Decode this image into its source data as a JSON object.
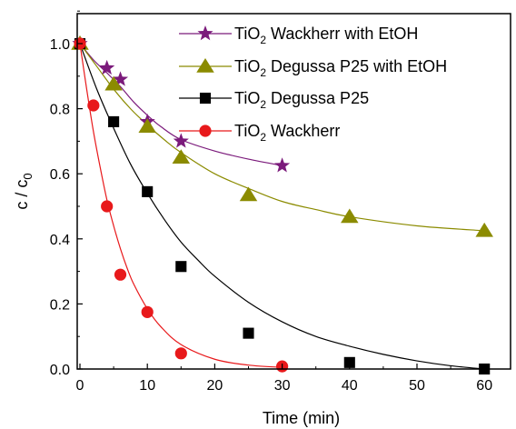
{
  "chart_data": {
    "type": "scatter",
    "xlabel": "Time (min)",
    "ylabel": {
      "main": "c / c",
      "sub": "0"
    },
    "xlim": [
      0,
      65
    ],
    "ylim": [
      0,
      1.1
    ],
    "xticks": [
      0,
      10,
      20,
      30,
      40,
      50,
      60
    ],
    "yticks": [
      0.0,
      0.2,
      0.4,
      0.6,
      0.8,
      1.0
    ],
    "xtick_labels": [
      "0",
      "10",
      "20",
      "30",
      "40",
      "50",
      "60"
    ],
    "ytick_labels": [
      "0.0",
      "0.2",
      "0.4",
      "0.6",
      "0.8",
      "1.0"
    ],
    "grid": false,
    "legend_position": "top-right",
    "series": [
      {
        "name": {
          "pre": "TiO",
          "sub": "2",
          "post": " Wackherr  with EtOH"
        },
        "color": "#7b1a7b",
        "marker": "star",
        "x": [
          0,
          4,
          6,
          10,
          15,
          30
        ],
        "y": [
          1.0,
          0.925,
          0.89,
          0.76,
          0.7,
          0.625
        ],
        "curve": [
          [
            0,
            1.0
          ],
          [
            2,
            0.95
          ],
          [
            4,
            0.91
          ],
          [
            6,
            0.868
          ],
          [
            8,
            0.82
          ],
          [
            10,
            0.78
          ],
          [
            12,
            0.745
          ],
          [
            15,
            0.705
          ],
          [
            20,
            0.67
          ],
          [
            25,
            0.645
          ],
          [
            30,
            0.625
          ]
        ]
      },
      {
        "name": {
          "pre": "TiO",
          "sub": "2",
          "post": " Degussa P25  with EtOH"
        },
        "color": "#8b8b00",
        "marker": "triangle",
        "x": [
          0,
          5,
          10,
          15,
          25,
          40,
          60
        ],
        "y": [
          1.0,
          0.875,
          0.745,
          0.65,
          0.535,
          0.468,
          0.425
        ],
        "curve": [
          [
            0,
            1.0
          ],
          [
            2.5,
            0.93
          ],
          [
            5,
            0.86
          ],
          [
            7.5,
            0.8
          ],
          [
            10,
            0.75
          ],
          [
            12.5,
            0.705
          ],
          [
            15,
            0.665
          ],
          [
            20,
            0.6
          ],
          [
            25,
            0.555
          ],
          [
            30,
            0.515
          ],
          [
            35,
            0.49
          ],
          [
            40,
            0.468
          ],
          [
            50,
            0.44
          ],
          [
            60,
            0.425
          ]
        ]
      },
      {
        "name": {
          "pre": "TiO",
          "sub": "2",
          "post": " Degussa P25"
        },
        "color": "#000000",
        "marker": "square",
        "x": [
          0,
          5,
          10,
          15,
          25,
          40,
          60
        ],
        "y": [
          1.0,
          0.76,
          0.545,
          0.315,
          0.11,
          0.02,
          0.0
        ],
        "curve": [
          [
            0,
            1.0
          ],
          [
            2.5,
            0.86
          ],
          [
            5,
            0.74
          ],
          [
            7.5,
            0.63
          ],
          [
            10,
            0.54
          ],
          [
            12.5,
            0.46
          ],
          [
            15,
            0.39
          ],
          [
            17.5,
            0.335
          ],
          [
            20,
            0.285
          ],
          [
            25,
            0.205
          ],
          [
            30,
            0.145
          ],
          [
            35,
            0.1
          ],
          [
            40,
            0.07
          ],
          [
            45,
            0.045
          ],
          [
            50,
            0.025
          ],
          [
            55,
            0.01
          ],
          [
            60,
            0.0
          ]
        ]
      },
      {
        "name": {
          "pre": "TiO",
          "sub": "2",
          "post": " Wackherr"
        },
        "color": "#e8191b",
        "marker": "circle",
        "x": [
          0,
          2,
          4,
          6,
          10,
          15,
          30
        ],
        "y": [
          1.0,
          0.81,
          0.5,
          0.29,
          0.175,
          0.048,
          0.008
        ],
        "curve": [
          [
            0,
            1.0
          ],
          [
            1,
            0.86
          ],
          [
            2,
            0.73
          ],
          [
            3,
            0.62
          ],
          [
            4,
            0.52
          ],
          [
            5,
            0.44
          ],
          [
            6,
            0.37
          ],
          [
            7,
            0.31
          ],
          [
            8,
            0.26
          ],
          [
            10,
            0.185
          ],
          [
            12,
            0.13
          ],
          [
            15,
            0.075
          ],
          [
            20,
            0.03
          ],
          [
            25,
            0.012
          ],
          [
            30,
            0.005
          ]
        ]
      }
    ]
  }
}
